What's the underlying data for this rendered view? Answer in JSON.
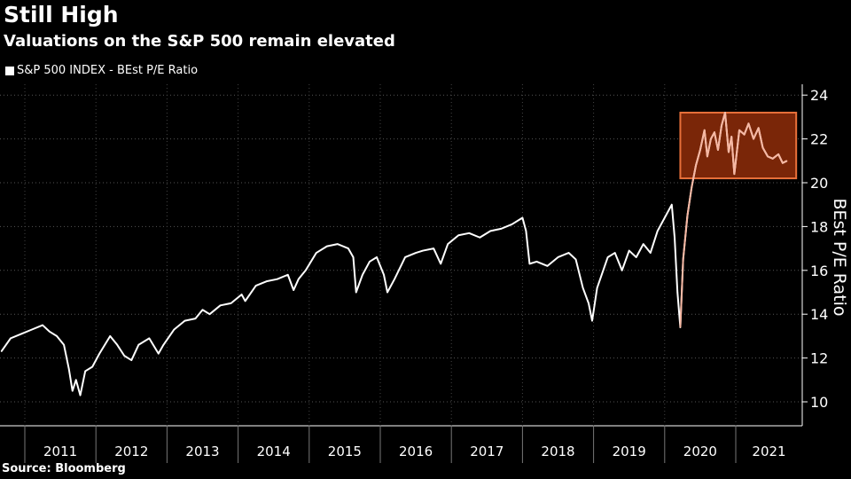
{
  "chart_data": {
    "type": "line",
    "title": "Still High",
    "subtitle": "Valuations on the S&P 500 remain elevated",
    "legend": [
      "S&P 500 INDEX - BEst P/E Ratio"
    ],
    "ylabel": "BEst P/E Ratio",
    "ylim": [
      9,
      24.5
    ],
    "yticks": [
      10,
      12,
      14,
      16,
      18,
      20,
      22,
      24
    ],
    "xlim": [
      2010.67,
      2021.85
    ],
    "xtick_labels": [
      "2011",
      "2012",
      "2013",
      "2014",
      "2015",
      "2016",
      "2017",
      "2018",
      "2019",
      "2020",
      "2021"
    ],
    "highlight": {
      "x": [
        2020.22,
        2021.85
      ],
      "y": [
        20.2,
        23.2
      ],
      "color": "#e8703a"
    },
    "colors": {
      "line": "#ffffff",
      "highlight_line": "#f6b7a2",
      "highlight_fill": "#7a2608"
    },
    "series": [
      {
        "name": "S&P 500 INDEX - BEst P/E Ratio",
        "x": [
          2010.67,
          2010.8,
          2010.95,
          2011.1,
          2011.25,
          2011.35,
          2011.45,
          2011.55,
          2011.62,
          2011.67,
          2011.72,
          2011.78,
          2011.85,
          2011.95,
          2012.05,
          2012.2,
          2012.3,
          2012.4,
          2012.5,
          2012.6,
          2012.75,
          2012.88,
          2012.95,
          2013.1,
          2013.25,
          2013.4,
          2013.5,
          2013.6,
          2013.75,
          2013.9,
          2014.05,
          2014.1,
          2014.25,
          2014.4,
          2014.55,
          2014.7,
          2014.78,
          2014.85,
          2014.95,
          2015.1,
          2015.25,
          2015.4,
          2015.55,
          2015.62,
          2015.66,
          2015.75,
          2015.85,
          2015.95,
          2016.05,
          2016.1,
          2016.2,
          2016.35,
          2016.5,
          2016.6,
          2016.75,
          2016.85,
          2016.95,
          2017.1,
          2017.25,
          2017.4,
          2017.55,
          2017.7,
          2017.85,
          2018.0,
          2018.05,
          2018.1,
          2018.2,
          2018.35,
          2018.5,
          2018.65,
          2018.75,
          2018.85,
          2018.93,
          2018.98,
          2019.05,
          2019.2,
          2019.3,
          2019.4,
          2019.5,
          2019.6,
          2019.7,
          2019.8,
          2019.9,
          2020.0,
          2020.1,
          2020.14,
          2020.18,
          2020.22,
          2020.26,
          2020.32,
          2020.38,
          2020.44,
          2020.5,
          2020.56,
          2020.6,
          2020.65,
          2020.7,
          2020.75,
          2020.8,
          2020.85,
          2020.9,
          2020.94,
          2020.98,
          2021.05,
          2021.12,
          2021.18,
          2021.25,
          2021.32,
          2021.38,
          2021.45,
          2021.52,
          2021.6,
          2021.66,
          2021.72
        ],
        "values": [
          12.3,
          12.9,
          13.1,
          13.3,
          13.5,
          13.2,
          13.0,
          12.6,
          11.5,
          10.5,
          11.0,
          10.3,
          11.4,
          11.6,
          12.2,
          13.0,
          12.6,
          12.1,
          11.9,
          12.6,
          12.9,
          12.2,
          12.6,
          13.3,
          13.7,
          13.8,
          14.2,
          14.0,
          14.4,
          14.5,
          14.9,
          14.6,
          15.3,
          15.5,
          15.6,
          15.8,
          15.1,
          15.6,
          16.0,
          16.8,
          17.1,
          17.2,
          17.0,
          16.6,
          15.0,
          15.8,
          16.4,
          16.6,
          15.8,
          15.0,
          15.6,
          16.6,
          16.8,
          16.9,
          17.0,
          16.3,
          17.2,
          17.6,
          17.7,
          17.5,
          17.8,
          17.9,
          18.1,
          18.4,
          17.8,
          16.3,
          16.4,
          16.2,
          16.6,
          16.8,
          16.5,
          15.2,
          14.5,
          13.7,
          15.2,
          16.6,
          16.8,
          16.0,
          16.9,
          16.6,
          17.2,
          16.8,
          17.8,
          18.4,
          19.0,
          17.5,
          15.0,
          13.4,
          16.5,
          18.5,
          19.8,
          20.8,
          21.5,
          22.4,
          21.2,
          22.0,
          22.3,
          21.5,
          22.6,
          23.2,
          21.4,
          22.1,
          20.4,
          22.4,
          22.2,
          22.7,
          22.0,
          22.5,
          21.6,
          21.2,
          21.1,
          21.3,
          20.9,
          21.0
        ]
      }
    ]
  },
  "source": "Source: Bloomberg"
}
